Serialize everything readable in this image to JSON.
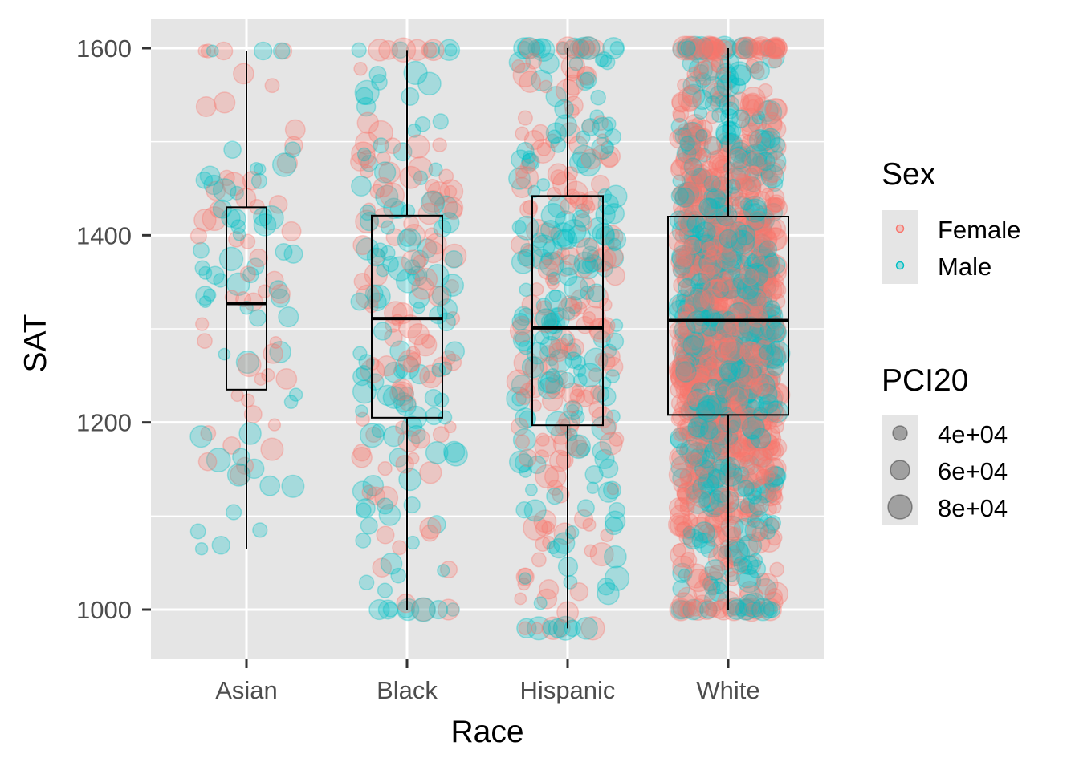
{
  "chart_data": {
    "type": "scatter",
    "subtype": "jittered points with boxplot overlay",
    "xlabel": "Race",
    "ylabel": "SAT",
    "categories": [
      "Asian",
      "Black",
      "Hispanic",
      "White"
    ],
    "y_ticks": [
      1000,
      1200,
      1400,
      1600
    ],
    "ylim": [
      948,
      1630
    ],
    "grid": true,
    "legend_position": "right",
    "boxplots": [
      {
        "category": "Asian",
        "whisker_low": 1065,
        "q1": 1235,
        "median": 1327,
        "q3": 1430,
        "whisker_high": 1597
      },
      {
        "category": "Black",
        "whisker_low": 1000,
        "q1": 1205,
        "median": 1311,
        "q3": 1421,
        "whisker_high": 1598
      },
      {
        "category": "Hispanic",
        "whisker_low": 980,
        "q1": 1197,
        "median": 1301,
        "q3": 1442,
        "whisker_high": 1600
      },
      {
        "category": "White",
        "whisker_low": 1000,
        "q1": 1208,
        "median": 1309,
        "q3": 1420,
        "whisker_high": 1600
      }
    ],
    "point_counts_approx": {
      "Asian": 110,
      "Black": 230,
      "Hispanic": 380,
      "White": 1500
    },
    "legends": {
      "sex": {
        "title": "Sex",
        "entries": [
          {
            "label": "Female",
            "color": "#F8766D"
          },
          {
            "label": "Male",
            "color": "#00BFC4"
          }
        ]
      },
      "size": {
        "title": "PCI20",
        "entries": [
          {
            "label": "4e+04",
            "value": 40000
          },
          {
            "label": "6e+04",
            "value": 60000
          },
          {
            "label": "8e+04",
            "value": 80000
          }
        ]
      }
    },
    "colors": {
      "panel_background": "#E5E5E5",
      "grid_line": "#FFFFFF",
      "female": "#F8766D",
      "male": "#00BFC4",
      "box_line": "#000000"
    }
  }
}
